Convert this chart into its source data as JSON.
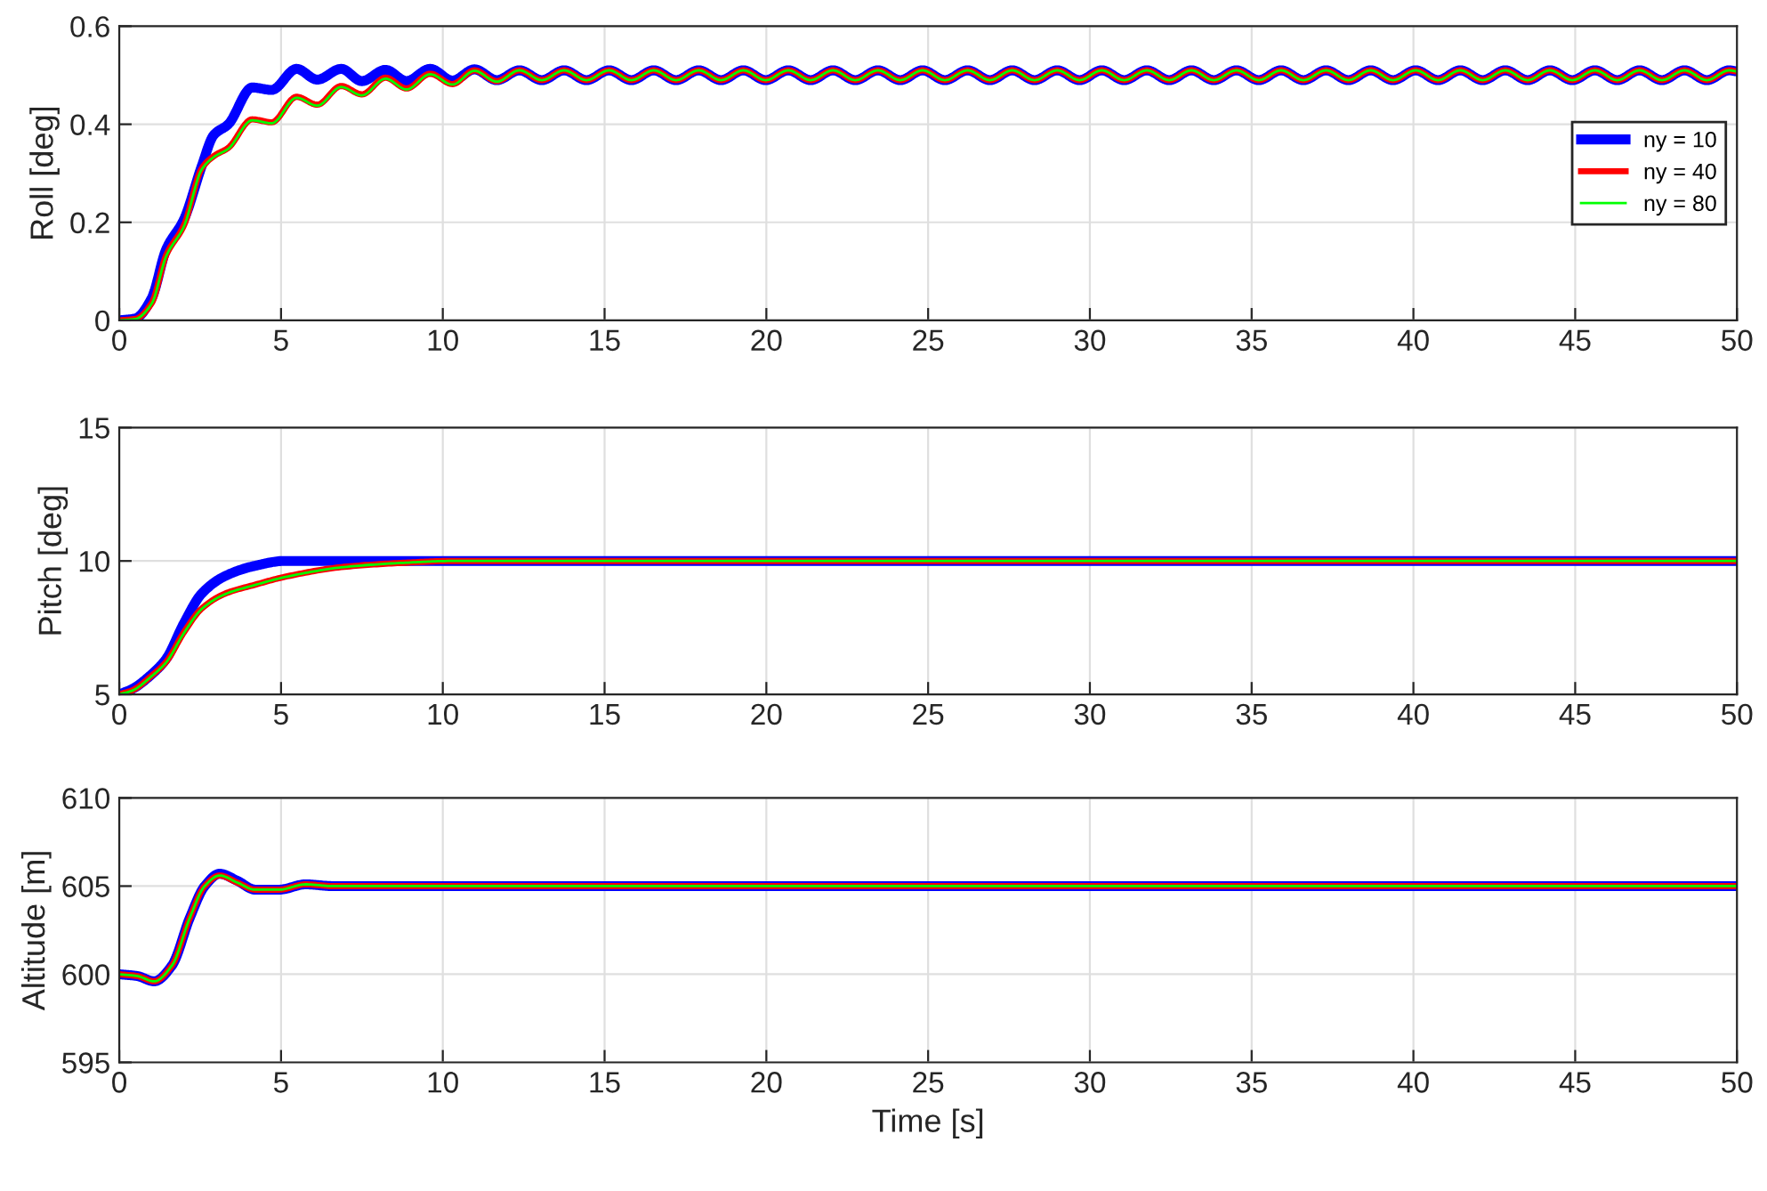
{
  "chart_data": [
    {
      "type": "line",
      "ylabel": "Roll [deg]",
      "xlim": [
        0,
        50
      ],
      "xticks": [
        0,
        5,
        10,
        15,
        20,
        25,
        30,
        35,
        40,
        45,
        50
      ],
      "ylim": [
        0,
        0.6
      ],
      "yticks": [
        0,
        0.2,
        0.4,
        0.6
      ],
      "grid": true,
      "legend": "right",
      "x": [
        0,
        0.5,
        1,
        1.45,
        2,
        2.55,
        2.92,
        3.37,
        4.11,
        4.71,
        5.48,
        6.12,
        6.86,
        7.5,
        8.23,
        8.88,
        9.61,
        10.3,
        10.98,
        11.67,
        12.37,
        13.06,
        13.75,
        14.44,
        15.14,
        15.83,
        16.52,
        17.21,
        17.91,
        18.6,
        19.29,
        19.98,
        20.68,
        21.37,
        22.06,
        22.75,
        23.45,
        24.14,
        24.83,
        25.52,
        26.22,
        26.91,
        27.6,
        28.29,
        28.99,
        29.68,
        30.37,
        31.06,
        31.76,
        32.45,
        33.14,
        33.83,
        34.53,
        35.22,
        35.91,
        36.6,
        37.3,
        37.99,
        38.68,
        39.37,
        40.07,
        40.76,
        41.45,
        42.14,
        42.84,
        43.53,
        44.22,
        44.91,
        45.61,
        46.3,
        46.99,
        47.68,
        48.38,
        49.07,
        49.76,
        50
      ],
      "series": [
        {
          "name": "ny = 10",
          "color": "#0000ff",
          "values": [
            0,
            0.004,
            0.045,
            0.145,
            0.206,
            0.315,
            0.378,
            0.4,
            0.475,
            0.47,
            0.513,
            0.491,
            0.513,
            0.488,
            0.511,
            0.488,
            0.513,
            0.489,
            0.512,
            0.49,
            0.51,
            0.49,
            0.51,
            0.49,
            0.51,
            0.49,
            0.51,
            0.49,
            0.51,
            0.49,
            0.51,
            0.49,
            0.51,
            0.49,
            0.51,
            0.49,
            0.51,
            0.49,
            0.51,
            0.49,
            0.51,
            0.49,
            0.51,
            0.49,
            0.51,
            0.49,
            0.51,
            0.49,
            0.51,
            0.49,
            0.51,
            0.49,
            0.51,
            0.49,
            0.51,
            0.49,
            0.51,
            0.49,
            0.51,
            0.49,
            0.51,
            0.49,
            0.51,
            0.49,
            0.51,
            0.49,
            0.51,
            0.49,
            0.51,
            0.49,
            0.51,
            0.49,
            0.51,
            0.49,
            0.51,
            0.508
          ]
        },
        {
          "name": "ny = 40",
          "color": "#ff0000",
          "values": [
            0,
            0.003,
            0.035,
            0.133,
            0.194,
            0.31,
            0.335,
            0.352,
            0.41,
            0.404,
            0.456,
            0.44,
            0.478,
            0.461,
            0.495,
            0.473,
            0.503,
            0.482,
            0.51,
            0.488,
            0.51,
            0.49,
            0.51,
            0.49,
            0.51,
            0.49,
            0.51,
            0.49,
            0.51,
            0.49,
            0.51,
            0.49,
            0.51,
            0.49,
            0.51,
            0.49,
            0.51,
            0.49,
            0.51,
            0.49,
            0.51,
            0.49,
            0.51,
            0.49,
            0.51,
            0.49,
            0.51,
            0.49,
            0.51,
            0.49,
            0.51,
            0.49,
            0.51,
            0.49,
            0.51,
            0.49,
            0.51,
            0.49,
            0.51,
            0.49,
            0.51,
            0.49,
            0.51,
            0.49,
            0.51,
            0.49,
            0.51,
            0.49,
            0.51,
            0.49,
            0.51,
            0.49,
            0.51,
            0.49,
            0.51,
            0.508
          ]
        },
        {
          "name": "ny = 80",
          "color": "#00ff00",
          "values": [
            0,
            0.003,
            0.034,
            0.131,
            0.192,
            0.308,
            0.333,
            0.35,
            0.408,
            0.402,
            0.454,
            0.438,
            0.476,
            0.459,
            0.493,
            0.471,
            0.502,
            0.481,
            0.509,
            0.487,
            0.51,
            0.49,
            0.51,
            0.49,
            0.51,
            0.49,
            0.51,
            0.49,
            0.51,
            0.49,
            0.51,
            0.49,
            0.51,
            0.49,
            0.51,
            0.49,
            0.51,
            0.49,
            0.51,
            0.49,
            0.51,
            0.49,
            0.51,
            0.49,
            0.51,
            0.49,
            0.51,
            0.49,
            0.51,
            0.49,
            0.51,
            0.49,
            0.51,
            0.49,
            0.51,
            0.49,
            0.51,
            0.49,
            0.51,
            0.49,
            0.51,
            0.49,
            0.51,
            0.49,
            0.51,
            0.49,
            0.51,
            0.49,
            0.51,
            0.49,
            0.51,
            0.49,
            0.51,
            0.49,
            0.51,
            0.508
          ]
        }
      ]
    },
    {
      "type": "line",
      "ylabel": "Pitch [deg]",
      "xlim": [
        0,
        50
      ],
      "xticks": [
        0,
        5,
        10,
        15,
        20,
        25,
        30,
        35,
        40,
        45,
        50
      ],
      "ylim": [
        5,
        15
      ],
      "yticks": [
        5,
        10,
        15
      ],
      "grid": true,
      "x": [
        0,
        0.4,
        1,
        1.45,
        2,
        2.55,
        3.28,
        4.2,
        5.1,
        6.95,
        8.78,
        10.3,
        15,
        50
      ],
      "series": [
        {
          "color": "#0000ff",
          "values": [
            5,
            5.2,
            5.75,
            6.33,
            7.67,
            8.78,
            9.44,
            9.82,
            10,
            10,
            10,
            10,
            10,
            10
          ]
        },
        {
          "color": "#ff0000",
          "values": [
            5,
            5.15,
            5.7,
            6.22,
            7.33,
            8.22,
            8.78,
            9.11,
            9.4,
            9.78,
            9.93,
            10,
            10,
            10
          ]
        },
        {
          "color": "#00ff00",
          "values": [
            5,
            5.14,
            5.68,
            6.2,
            7.3,
            8.2,
            8.76,
            9.1,
            9.39,
            9.77,
            9.93,
            10,
            10,
            10
          ]
        }
      ]
    },
    {
      "type": "line",
      "ylabel": "Altitude [m]",
      "xlabel": "Time [s]",
      "xlim": [
        0,
        50
      ],
      "xticks": [
        0,
        5,
        10,
        15,
        20,
        25,
        30,
        35,
        40,
        45,
        50
      ],
      "ylim": [
        595,
        610
      ],
      "yticks": [
        595,
        600,
        605,
        610
      ],
      "grid": true,
      "x": [
        0,
        0.55,
        1.08,
        1.63,
        2.18,
        2.64,
        3.1,
        3.65,
        4.2,
        4.94,
        5.76,
        6.6,
        10,
        50
      ],
      "series": [
        {
          "color": "#0000ff",
          "values": [
            600,
            599.9,
            599.6,
            600.5,
            603.2,
            605,
            605.7,
            605.3,
            604.8,
            604.8,
            605.1,
            605,
            605,
            605
          ]
        },
        {
          "color": "#ff0000",
          "values": [
            600,
            599.9,
            599.6,
            600.5,
            603.2,
            605,
            605.6,
            605.2,
            604.8,
            604.8,
            605.1,
            605,
            605,
            605
          ]
        },
        {
          "color": "#00ff00",
          "values": [
            600,
            599.9,
            599.6,
            600.5,
            603.2,
            605,
            605.6,
            605.2,
            604.8,
            604.8,
            605.1,
            605,
            605,
            605
          ]
        }
      ]
    }
  ]
}
